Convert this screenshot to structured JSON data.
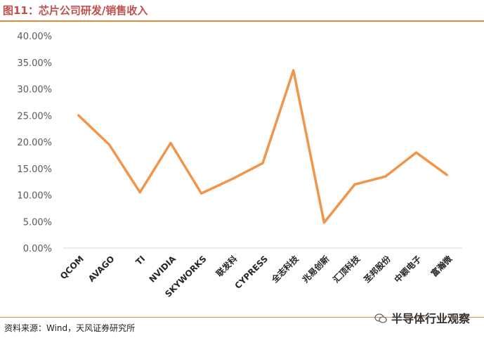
{
  "header": {
    "title": "图11：芯片公司研发/销售收入"
  },
  "footer": {
    "source": "资料来源：Wind，天风证券研究所",
    "watermark": "半导体行业观察"
  },
  "colors": {
    "line": "#f0954a",
    "accent_rule": "#e58b3e",
    "title": "#c0504d",
    "axis": "#d9d9d9"
  },
  "chart_data": {
    "type": "line",
    "title": "",
    "xlabel": "",
    "ylabel": "",
    "categories": [
      "QCOM",
      "AVAGO",
      "TI",
      "NVIDIA",
      "SKYWORKS",
      "联发科",
      "CYPRESS",
      "全志科技",
      "兆易创新",
      "汇顶科技",
      "圣邦股份",
      "中颖电子",
      "富瀚微"
    ],
    "values": [
      25.0,
      19.5,
      10.5,
      19.8,
      10.3,
      13.0,
      16.0,
      33.5,
      4.8,
      12.0,
      13.5,
      18.0,
      13.8
    ],
    "ylim": [
      0,
      40
    ],
    "yticks": [
      "0.00%",
      "5.00%",
      "10.00%",
      "15.00%",
      "20.00%",
      "25.00%",
      "30.00%",
      "35.00%",
      "40.00%"
    ],
    "grid": false,
    "legend": "none"
  }
}
